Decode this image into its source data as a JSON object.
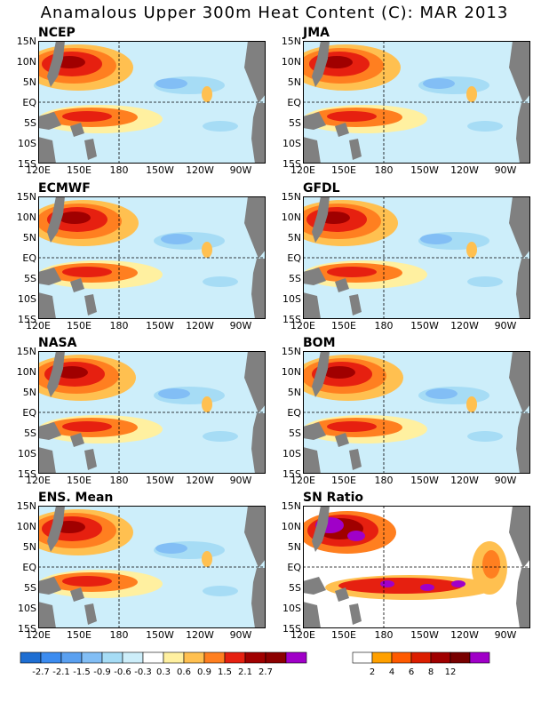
{
  "title": "Anamalous Upper 300m Heat Content (C): MAR 2013",
  "panels": [
    {
      "name": "NCEP",
      "kind": "anomaly"
    },
    {
      "name": "JMA",
      "kind": "anomaly"
    },
    {
      "name": "ECMWF",
      "kind": "anomaly"
    },
    {
      "name": "GFDL",
      "kind": "anomaly"
    },
    {
      "name": "NASA",
      "kind": "anomaly"
    },
    {
      "name": "BOM",
      "kind": "anomaly"
    },
    {
      "name": "ENS. Mean",
      "kind": "anomaly"
    },
    {
      "name": "SN Ratio",
      "kind": "snr"
    }
  ],
  "lat_labels": [
    "15N",
    "10N",
    "5N",
    "EQ",
    "5S",
    "10S",
    "15S"
  ],
  "lon_labels": [
    "120E",
    "150E",
    "180",
    "150W",
    "120W",
    "90W"
  ],
  "anomaly_colorbar": {
    "labels": [
      "-2.7",
      "-2.1",
      "-1.5",
      "-0.9",
      "-0.6",
      "-0.3",
      "0.3",
      "0.6",
      "0.9",
      "1.5",
      "2.1",
      "2.7"
    ],
    "colors": [
      "#1e6ed2",
      "#3c8cf0",
      "#5aa0f0",
      "#82bef5",
      "#a6dcf5",
      "#cdeefa",
      "#ffffff",
      "#fff0a0",
      "#ffc050",
      "#ff7f20",
      "#e62010",
      "#a00000",
      "#8c0000",
      "#a000c8"
    ]
  },
  "snr_colorbar": {
    "labels": [
      "2",
      "4",
      "6",
      "8",
      "12"
    ],
    "colors": [
      "#ffffff",
      "#ffa000",
      "#ff5a00",
      "#dc1e00",
      "#a00000",
      "#780000",
      "#a000c8"
    ]
  },
  "colors": {
    "land": "#808080",
    "warm_strong": "#a00000",
    "warm": "#e62010",
    "warm_mid": "#ff7f20",
    "warm_light": "#ffc050",
    "warm_pale": "#fff0a0",
    "cool_pale": "#cdeefa",
    "cool_light": "#a6dcf5",
    "cool": "#82bef5",
    "cool_mid": "#5aa0f0",
    "purple": "#a000c8"
  }
}
